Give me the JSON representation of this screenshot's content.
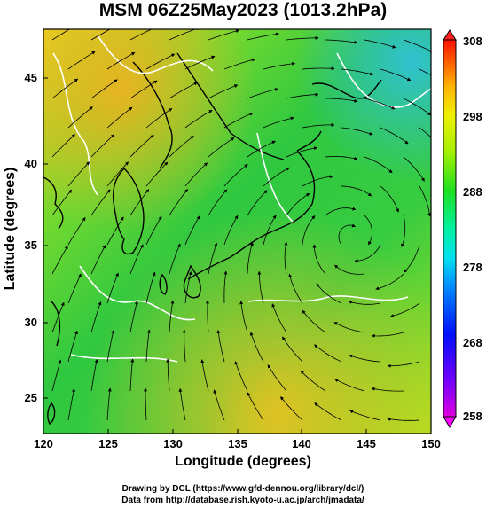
{
  "title": "MSM 06Z25May2023 (1013.2hPa)",
  "x_axis": {
    "label": "Longitude (degrees)",
    "ticks": [
      "120",
      "125",
      "130",
      "135",
      "140",
      "145",
      "150"
    ]
  },
  "y_axis": {
    "label": "Latitude  (degrees)",
    "ticks": [
      "45",
      "40",
      "35",
      "30",
      "25"
    ]
  },
  "colorbar": {
    "ticks": [
      "308",
      "298",
      "288",
      "278",
      "268",
      "258"
    ],
    "range": [
      258,
      308
    ],
    "colors": [
      "#ff00ff",
      "#8800ff",
      "#0000ff",
      "#0088ff",
      "#00e0ff",
      "#00ffa0",
      "#00ff00",
      "#a0ff00",
      "#ffff00",
      "#ffb000",
      "#ff6000",
      "#ff0000"
    ]
  },
  "map_extent": {
    "lon": [
      120,
      150
    ],
    "lat": [
      23,
      48
    ]
  },
  "credits": {
    "line1": "Drawing by DCL (https://www.gfd-dennou.org/library/dcl/)",
    "line2": "Data from http://database.rish.kyoto-u.ac.jp/arch/jmadata/"
  },
  "colors": {
    "land_coast": "#000000",
    "isotherm": "#ffffff",
    "warm_field": "#f2c020",
    "mid_field": "#a8e020",
    "cool_field": "#40d040"
  }
}
